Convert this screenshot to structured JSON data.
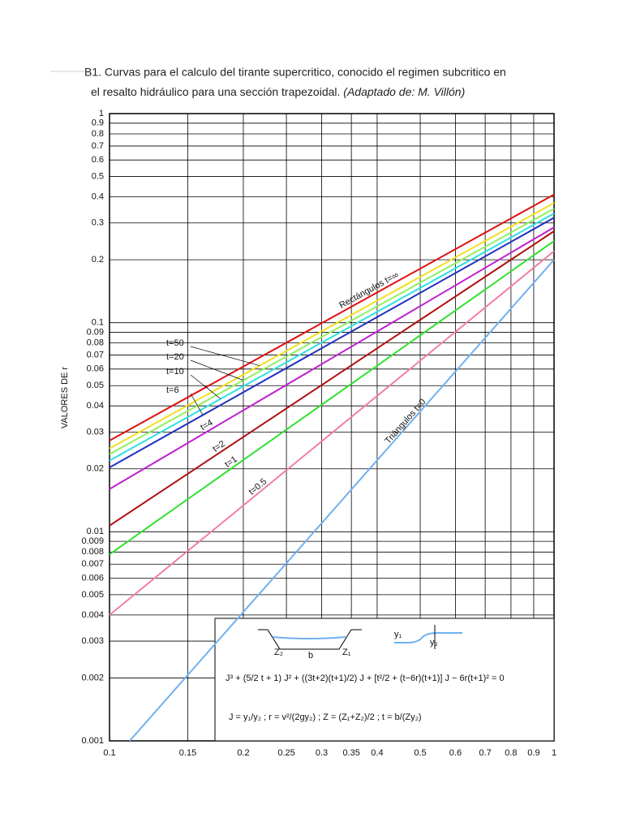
{
  "chart_data": {
    "type": "line",
    "title": [
      "B1. Curvas para el calculo del tirante supercritico, conocido el regimen subcritico en",
      "el resalto hidráulico para una sección trapezoidal."
    ],
    "subtitle": "(Adaptado de: M. Villón)",
    "ylabel": "VALORES DE r",
    "log_x": true,
    "log_y": true,
    "grid": true,
    "xlim": [
      0.1,
      1
    ],
    "ylim": [
      0.001,
      1
    ],
    "xticks": [
      0.1,
      0.15,
      0.2,
      0.25,
      0.3,
      0.35,
      0.4,
      0.5,
      0.6,
      0.7,
      0.8,
      0.9,
      1
    ],
    "yticks": [
      1,
      0.9,
      0.8,
      0.7,
      0.6,
      0.5,
      0.4,
      0.3,
      0.2,
      0.1,
      0.09,
      0.08,
      0.07,
      0.06,
      0.05,
      0.04,
      0.03,
      0.02,
      0.01,
      0.009,
      0.008,
      0.007,
      0.006,
      0.005,
      0.004,
      0.003,
      0.002,
      0.001
    ],
    "series": [
      {
        "name": "Rectángulos t=∞",
        "color": "#e01010",
        "x": [
          0.1,
          1
        ],
        "values": [
          0.0273,
          0.41
        ]
      },
      {
        "name": "t=50",
        "color": "#f0e020",
        "x": [
          0.1,
          1
        ],
        "values": [
          0.025,
          0.374
        ]
      },
      {
        "name": "t=20",
        "color": "#90f060",
        "x": [
          0.1,
          1
        ],
        "values": [
          0.0235,
          0.351
        ]
      },
      {
        "name": "t=10",
        "color": "#30e0e0",
        "x": [
          0.1,
          1
        ],
        "values": [
          0.0219,
          0.333
        ]
      },
      {
        "name": "t=6",
        "color": "#2030c0",
        "x": [
          0.1,
          1
        ],
        "values": [
          0.0203,
          0.318
        ]
      },
      {
        "name": "t=4",
        "color": "#c020d0",
        "x": [
          0.1,
          1
        ],
        "values": [
          0.016,
          0.286
        ]
      },
      {
        "name": "t=2",
        "color": "#b01010",
        "x": [
          0.1,
          1
        ],
        "values": [
          0.0107,
          0.274
        ]
      },
      {
        "name": "t=1",
        "color": "#30e030",
        "x": [
          0.1,
          1
        ],
        "values": [
          0.0078,
          0.246
        ]
      },
      {
        "name": "t=0.5",
        "color": "#f080a0",
        "x": [
          0.1,
          1
        ],
        "values": [
          0.004,
          0.22
        ]
      },
      {
        "name": "Triángulos t=0",
        "color": "#70b0f0",
        "x": [
          0.111,
          1
        ],
        "values": [
          0.001,
          0.2
        ]
      }
    ],
    "inset": {
      "equation": "J³ + (5/2 t + 1) J² + ((3t+2)(t+1)/2) J + [t²/2 + (t−6r)(t+1)] J − 6r(t+1)² = 0",
      "definitions": "J = y₁/y₂ ;  r = v²/(2gy₂) ;  Z = (Z₁+Z₂)/2 ;  t = b/(Zy₂)",
      "diagram_labels": [
        "Z₂",
        "b",
        "Z₁",
        "y₁",
        "y₂"
      ]
    }
  }
}
